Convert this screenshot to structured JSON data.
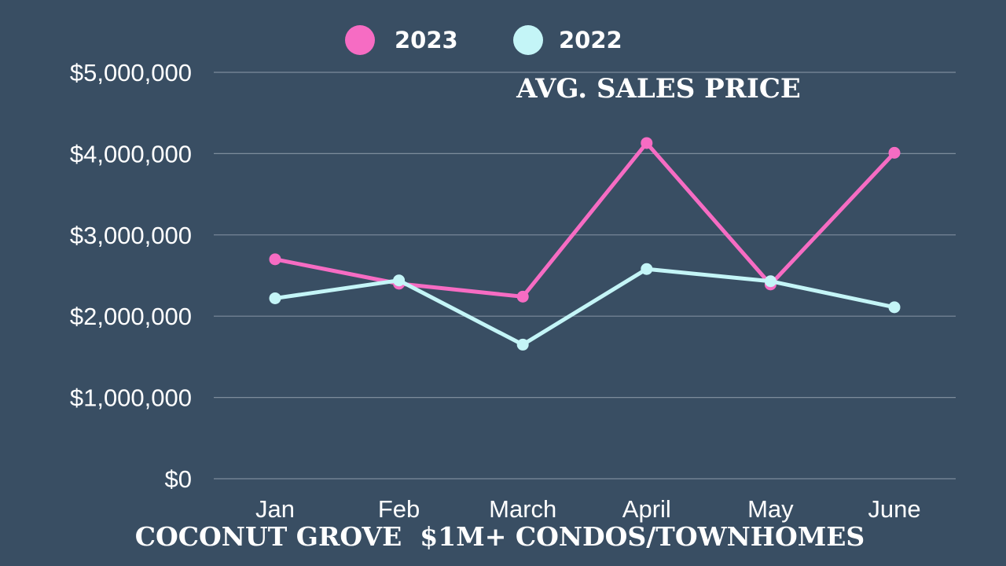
{
  "chart_data": {
    "type": "line",
    "title": "AVG. SALES PRICE",
    "subtitle": "COCONUT GROVE  $1M+ CONDOS/TOWNHOMES",
    "categories": [
      "Jan",
      "Feb",
      "March",
      "April",
      "May",
      "June"
    ],
    "series": [
      {
        "name": "2023",
        "color": "#f66cc3",
        "values": [
          2700000,
          2400000,
          2240000,
          4130000,
          2390000,
          4010000
        ]
      },
      {
        "name": "2022",
        "color": "#c4f5f7",
        "values": [
          2220000,
          2440000,
          1650000,
          2580000,
          2430000,
          2110000
        ]
      }
    ],
    "y_ticks": [
      0,
      1000000,
      2000000,
      3000000,
      4000000,
      5000000
    ],
    "y_tick_labels": [
      "$0",
      "$1,000,000",
      "$2,000,000",
      "$3,000,000",
      "$4,000,000",
      "$5,000,000"
    ],
    "ylim": [
      0,
      5000000
    ],
    "xlabel": "",
    "ylabel": "",
    "grid": true,
    "legend_position": "top-center"
  },
  "colors": {
    "background": "#394e63",
    "grid": "#7d8c9c",
    "text": "#ffffff"
  }
}
